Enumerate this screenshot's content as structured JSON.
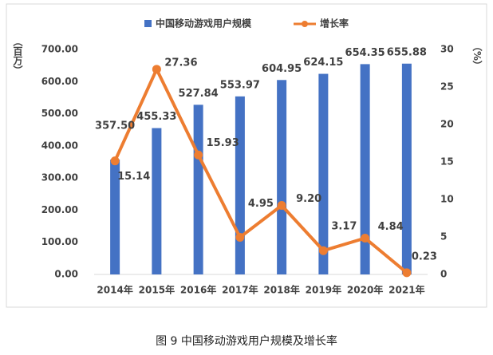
{
  "chart_data": {
    "type": "bar-line",
    "title": "图 9 中国移动游戏用户规模及增长率",
    "categories": [
      "2014年",
      "2015年",
      "2016年",
      "2017年",
      "2018年",
      "2019年",
      "2020年",
      "2021年"
    ],
    "series": [
      {
        "name": "中国移动游戏用户规模",
        "type": "bar",
        "color": "#4472c4",
        "values": [
          357.5,
          455.33,
          527.84,
          553.97,
          604.95,
          624.15,
          654.35,
          655.88
        ],
        "value_labels": [
          "357.50",
          "455.33",
          "527.84",
          "553.97",
          "604.95",
          "624.15",
          "654.35",
          "655.88"
        ]
      },
      {
        "name": "增长率",
        "type": "line",
        "axis": "y2",
        "color": "#ed7d31",
        "values": [
          15.14,
          27.36,
          15.93,
          4.95,
          9.2,
          3.17,
          4.84,
          0.23
        ],
        "value_labels": [
          "15.14",
          "27.36",
          "15.93",
          "4.95",
          "9.20",
          "3.17",
          "4.84",
          "0.23"
        ]
      }
    ],
    "ylabel": "（百万）",
    "y2label": "（%）",
    "ylim": [
      0,
      700
    ],
    "yticks": [
      {
        "value": 0,
        "label": "0.00"
      },
      {
        "value": 100,
        "label": "100.00"
      },
      {
        "value": 200,
        "label": "200.00"
      },
      {
        "value": 300,
        "label": "300.00"
      },
      {
        "value": 400,
        "label": "400.00"
      },
      {
        "value": 500,
        "label": "500.00"
      },
      {
        "value": 600,
        "label": "600.00"
      },
      {
        "value": 700,
        "label": "700.00"
      }
    ],
    "y2lim": [
      0,
      30
    ],
    "y2ticks": [
      0,
      5,
      10,
      15,
      20,
      25,
      30
    ],
    "legend": "top"
  }
}
